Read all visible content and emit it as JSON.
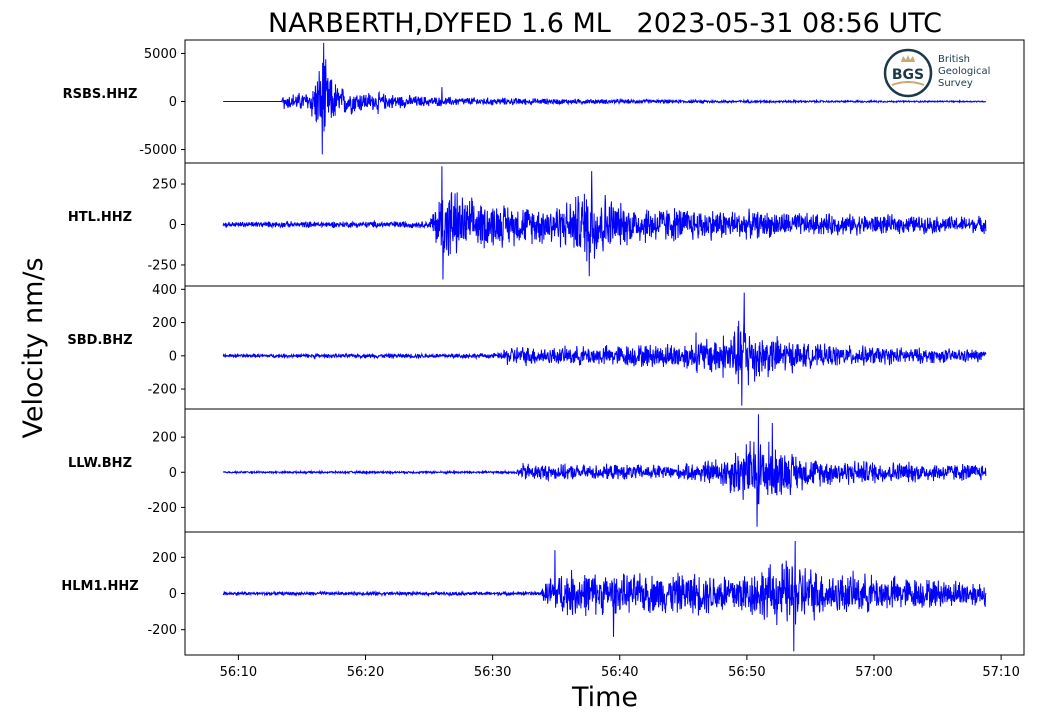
{
  "chart_data": {
    "type": "line",
    "title": "NARBERTH,DYFED 1.6 ML   2023-05-31 08:56 UTC",
    "xlabel": "Time",
    "ylabel": "Velocity nm/s",
    "x_unit": "seconds after 08:56:00 UTC",
    "xlim": [
      5.8,
      71.8
    ],
    "x_ticks": [
      {
        "value": 10,
        "label": "56:10"
      },
      {
        "value": 20,
        "label": "56:20"
      },
      {
        "value": 30,
        "label": "56:30"
      },
      {
        "value": 40,
        "label": "56:40"
      },
      {
        "value": 50,
        "label": "56:50"
      },
      {
        "value": 60,
        "label": "57:00"
      },
      {
        "value": 70,
        "label": "57:10"
      }
    ],
    "logo": {
      "name": "bgs-logo",
      "text": "BGS",
      "lines": [
        "British",
        "Geological",
        "Survey"
      ]
    },
    "panels": [
      {
        "station": "RSBS.HHZ",
        "ylim": [
          -6400,
          6400
        ],
        "yticks": [
          5000,
          0,
          -5000
        ],
        "ytick_labels": [
          "5000",
          "0",
          "-5000"
        ],
        "x_start": 8.8,
        "x_end": 68.8,
        "noise": 5,
        "envelope": [
          [
            8.8,
            5
          ],
          [
            13.4,
            5
          ],
          [
            13.5,
            900
          ],
          [
            15.5,
            1200
          ],
          [
            16.4,
            4200
          ],
          [
            16.7,
            6100
          ],
          [
            17.0,
            3500
          ],
          [
            18.0,
            1800
          ],
          [
            20.0,
            1200
          ],
          [
            22.0,
            900
          ],
          [
            25.0,
            600
          ],
          [
            28.0,
            500
          ],
          [
            35.0,
            350
          ],
          [
            45.0,
            200
          ],
          [
            55.0,
            120
          ],
          [
            68.8,
            80
          ]
        ],
        "spikes": [
          [
            16.7,
            6100
          ],
          [
            16.6,
            -5500
          ],
          [
            26.0,
            1500
          ],
          [
            21.0,
            -1300
          ]
        ]
      },
      {
        "station": "HTL.HHZ",
        "ylim": [
          -380,
          380
        ],
        "yticks": [
          250,
          0,
          -250
        ],
        "ytick_labels": [
          "250",
          "0",
          "-250"
        ],
        "x_start": 8.8,
        "x_end": 68.8,
        "noise": 20,
        "envelope": [
          [
            8.8,
            20
          ],
          [
            25.0,
            25
          ],
          [
            25.6,
            170
          ],
          [
            26.3,
            300
          ],
          [
            28.0,
            180
          ],
          [
            33.0,
            130
          ],
          [
            36.0,
            170
          ],
          [
            37.8,
            300
          ],
          [
            40.0,
            150
          ],
          [
            45.0,
            120
          ],
          [
            55.0,
            80
          ],
          [
            65.0,
            60
          ],
          [
            68.8,
            60
          ]
        ],
        "spikes": [
          [
            26.0,
            360
          ],
          [
            26.1,
            -340
          ],
          [
            37.8,
            330
          ],
          [
            37.6,
            -320
          ]
        ]
      },
      {
        "station": "SBD.BHZ",
        "ylim": [
          -320,
          420
        ],
        "yticks": [
          400,
          200,
          0,
          -200
        ],
        "ytick_labels": [
          "400",
          "200",
          "0",
          "-200"
        ],
        "x_start": 8.8,
        "x_end": 68.8,
        "noise": 12,
        "envelope": [
          [
            8.8,
            12
          ],
          [
            30.5,
            18
          ],
          [
            31.2,
            70
          ],
          [
            35.0,
            60
          ],
          [
            45.0,
            90
          ],
          [
            48.5,
            160
          ],
          [
            49.8,
            270
          ],
          [
            51.0,
            160
          ],
          [
            55.0,
            80
          ],
          [
            65.0,
            50
          ],
          [
            68.8,
            45
          ]
        ],
        "spikes": [
          [
            49.8,
            380
          ],
          [
            49.6,
            -300
          ],
          [
            46.0,
            140
          ]
        ]
      },
      {
        "station": "LLW.BHZ",
        "ylim": [
          -340,
          360
        ],
        "yticks": [
          200,
          0,
          -200
        ],
        "ytick_labels": [
          "200",
          "0",
          "-200"
        ],
        "x_start": 8.8,
        "x_end": 68.8,
        "noise": 6,
        "envelope": [
          [
            8.8,
            6
          ],
          [
            31.8,
            8
          ],
          [
            32.4,
            60
          ],
          [
            35.0,
            50
          ],
          [
            45.0,
            50
          ],
          [
            48.0,
            100
          ],
          [
            50.8,
            250
          ],
          [
            52.0,
            180
          ],
          [
            55.0,
            90
          ],
          [
            65.0,
            60
          ],
          [
            68.8,
            55
          ]
        ],
        "spikes": [
          [
            50.9,
            330
          ],
          [
            50.8,
            -310
          ],
          [
            52.0,
            280
          ]
        ]
      },
      {
        "station": "HLM1.HHZ",
        "ylim": [
          -340,
          340
        ],
        "yticks": [
          200,
          0,
          -200
        ],
        "ytick_labels": [
          "200",
          "0",
          "-200"
        ],
        "x_start": 8.8,
        "x_end": 68.8,
        "noise": 10,
        "envelope": [
          [
            8.8,
            10
          ],
          [
            33.8,
            12
          ],
          [
            34.4,
            110
          ],
          [
            36.0,
            150
          ],
          [
            40.0,
            120
          ],
          [
            50.0,
            140
          ],
          [
            53.5,
            220
          ],
          [
            56.0,
            140
          ],
          [
            65.0,
            90
          ],
          [
            68.8,
            80
          ]
        ],
        "spikes": [
          [
            34.9,
            240
          ],
          [
            53.8,
            290
          ],
          [
            53.7,
            -320
          ],
          [
            39.5,
            -240
          ]
        ]
      }
    ]
  }
}
